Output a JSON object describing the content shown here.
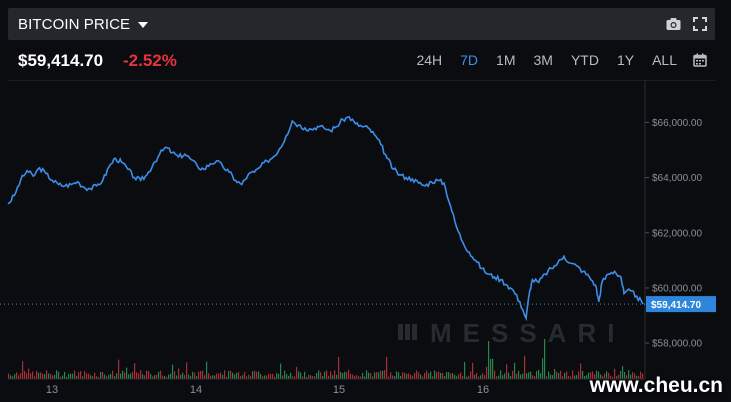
{
  "header": {
    "title": "BITCOIN PRICE",
    "icons": [
      "chevron-down-icon",
      "camera-icon",
      "fullscreen-icon"
    ]
  },
  "pricebar": {
    "price": "$59,414.70",
    "change": "-2.52%",
    "change_color": "#e5343f",
    "ranges": [
      {
        "label": "24H",
        "active": false
      },
      {
        "label": "7D",
        "active": true
      },
      {
        "label": "1M",
        "active": false
      },
      {
        "label": "3M",
        "active": false
      },
      {
        "label": "YTD",
        "active": false
      },
      {
        "label": "1Y",
        "active": false
      },
      {
        "label": "ALL",
        "active": false
      }
    ],
    "calendar_icon": "calendar-icon"
  },
  "chart_data": {
    "type": "line",
    "x_ticks": [
      "13",
      "14",
      "15",
      "16"
    ],
    "y_ticks": [
      "$66,000.00",
      "$64,000.00",
      "$62,000.00",
      "$60,000.00",
      "$58,000.00"
    ],
    "y_tick_values": [
      66000,
      64000,
      62000,
      60000,
      58000
    ],
    "ylim": [
      56700,
      67500
    ],
    "current_label": "$59,414.70",
    "current_value": 59414.7,
    "line_color": "#3d8ee8",
    "series": [
      {
        "points": [
          [
            0,
            63050
          ],
          [
            0.4,
            63350
          ],
          [
            0.8,
            63900
          ],
          [
            1.2,
            64250
          ],
          [
            1.6,
            64050
          ],
          [
            2.0,
            64350
          ],
          [
            2.4,
            64150
          ],
          [
            2.8,
            63900
          ],
          [
            3.2,
            63750
          ],
          [
            3.6,
            63700
          ],
          [
            4.0,
            63750
          ],
          [
            4.4,
            63850
          ],
          [
            4.8,
            63650
          ],
          [
            5.2,
            63600
          ],
          [
            5.6,
            63700
          ],
          [
            6.0,
            63900
          ],
          [
            6.4,
            64400
          ],
          [
            6.8,
            64700
          ],
          [
            7.2,
            64550
          ],
          [
            7.6,
            64300
          ],
          [
            8.0,
            64000
          ],
          [
            8.4,
            63900
          ],
          [
            8.8,
            64100
          ],
          [
            9.2,
            64500
          ],
          [
            9.6,
            64850
          ],
          [
            10.0,
            65100
          ],
          [
            10.4,
            64900
          ],
          [
            10.8,
            64750
          ],
          [
            11.2,
            64850
          ],
          [
            11.6,
            64650
          ],
          [
            12.0,
            64400
          ],
          [
            12.4,
            64300
          ],
          [
            12.8,
            64500
          ],
          [
            13.2,
            64600
          ],
          [
            13.6,
            64400
          ],
          [
            14.0,
            64200
          ],
          [
            14.4,
            63900
          ],
          [
            14.8,
            63750
          ],
          [
            15.2,
            64100
          ],
          [
            15.6,
            64200
          ],
          [
            16.0,
            64400
          ],
          [
            16.4,
            64600
          ],
          [
            16.8,
            64750
          ],
          [
            17.2,
            65050
          ],
          [
            17.6,
            65500
          ],
          [
            18.0,
            66050
          ],
          [
            18.4,
            65900
          ],
          [
            18.8,
            65800
          ],
          [
            19.2,
            65750
          ],
          [
            19.6,
            65850
          ],
          [
            20.0,
            65800
          ],
          [
            20.4,
            65700
          ],
          [
            20.8,
            65850
          ],
          [
            21.2,
            66100
          ],
          [
            21.6,
            66200
          ],
          [
            22.0,
            65950
          ],
          [
            22.4,
            65850
          ],
          [
            22.8,
            65800
          ],
          [
            23.2,
            65550
          ],
          [
            23.6,
            65200
          ],
          [
            24.0,
            64700
          ],
          [
            24.4,
            64300
          ],
          [
            24.8,
            64100
          ],
          [
            25.2,
            64000
          ],
          [
            25.6,
            63950
          ],
          [
            26.0,
            63800
          ],
          [
            26.4,
            63700
          ],
          [
            26.8,
            63850
          ],
          [
            27.2,
            63900
          ],
          [
            27.6,
            63800
          ],
          [
            28.0,
            63000
          ],
          [
            28.4,
            62200
          ],
          [
            28.8,
            61650
          ],
          [
            29.2,
            61300
          ],
          [
            29.6,
            61000
          ],
          [
            30.0,
            60700
          ],
          [
            30.4,
            60500
          ],
          [
            30.8,
            60400
          ],
          [
            31.2,
            60300
          ],
          [
            31.6,
            60100
          ],
          [
            32.0,
            59900
          ],
          [
            32.4,
            59500
          ],
          [
            32.8,
            58900
          ],
          [
            33.0,
            59800
          ],
          [
            33.2,
            60300
          ],
          [
            33.6,
            60200
          ],
          [
            34.0,
            60500
          ],
          [
            34.4,
            60700
          ],
          [
            34.8,
            60900
          ],
          [
            35.2,
            61150
          ],
          [
            35.6,
            60900
          ],
          [
            36.0,
            60800
          ],
          [
            36.4,
            60600
          ],
          [
            36.8,
            60400
          ],
          [
            37.2,
            60100
          ],
          [
            37.4,
            59500
          ],
          [
            37.6,
            60200
          ],
          [
            38.0,
            60500
          ],
          [
            38.4,
            60600
          ],
          [
            38.8,
            60400
          ],
          [
            39.0,
            59800
          ],
          [
            39.4,
            59900
          ],
          [
            39.8,
            59700
          ],
          [
            40.2,
            59414.7
          ]
        ],
        "x_range": [
          0,
          40.2
        ]
      }
    ],
    "volume_colors": {
      "up": "#2e9b57",
      "down": "#c7353d"
    }
  },
  "watermark": "MESSARI",
  "site_watermark": "www.cheu.cn"
}
